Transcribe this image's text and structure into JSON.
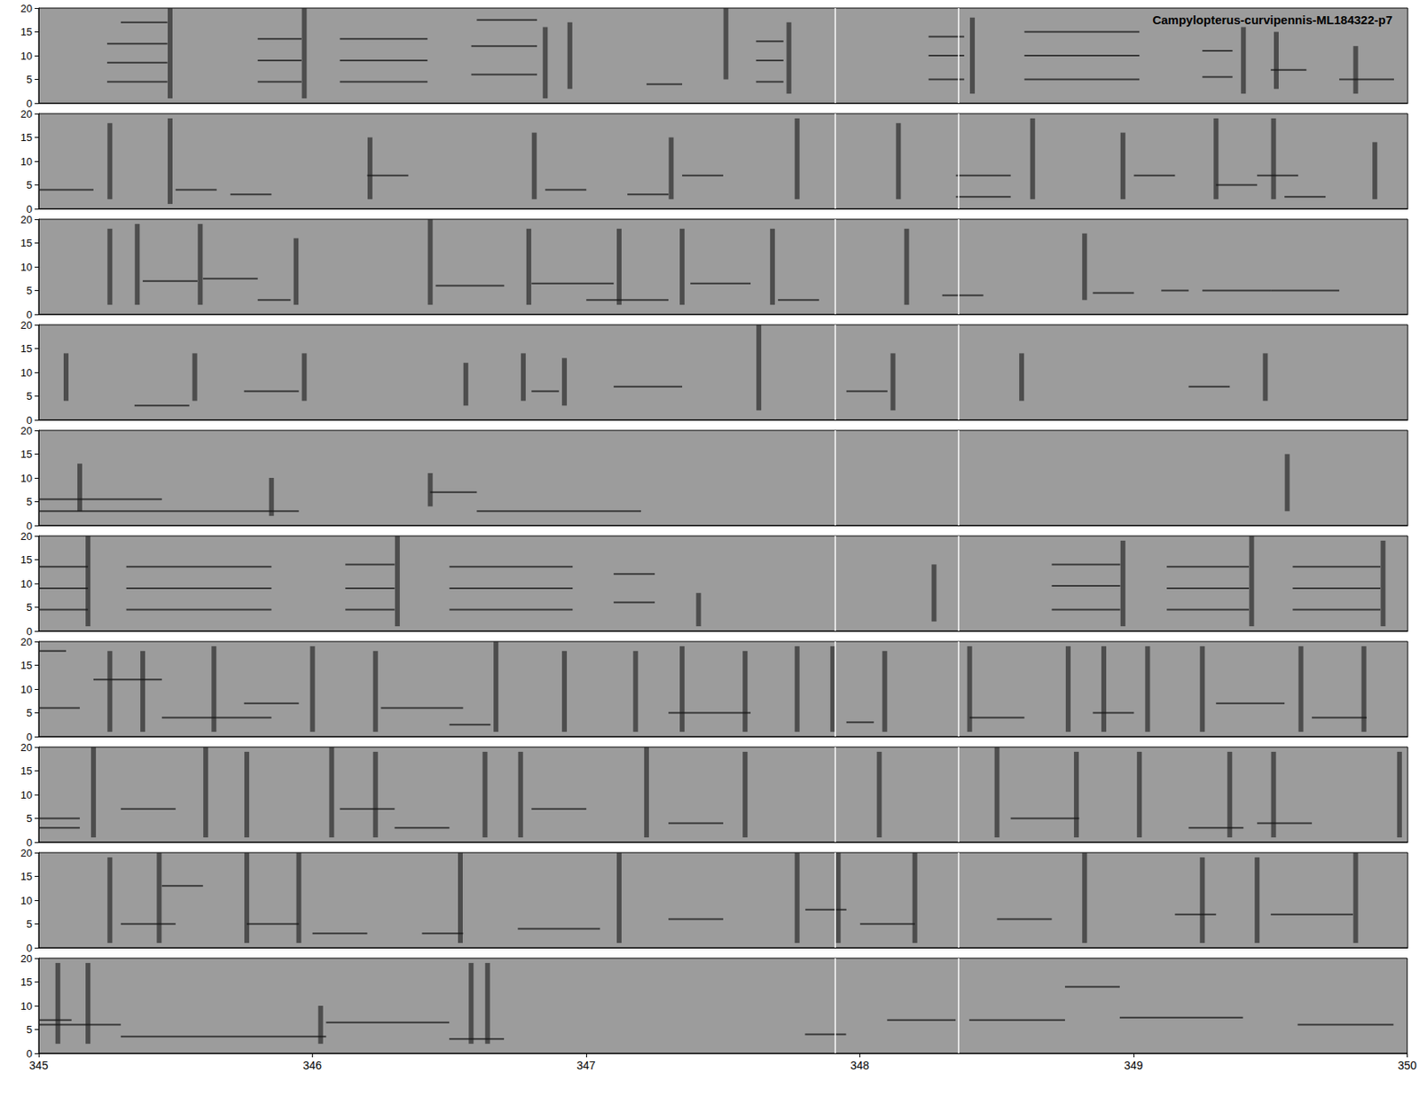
{
  "chart_data": {
    "type": "spectrogram",
    "title": "Campylopterus-curvipennis-ML184322-p7",
    "xlim": [
      345,
      350
    ],
    "xticks": [
      345,
      346,
      347,
      348,
      349,
      350
    ],
    "ylim": [
      0,
      20
    ],
    "yticks": [
      0,
      5,
      10,
      15,
      20
    ],
    "markers": [
      347.91,
      348.36
    ],
    "panels": [
      {
        "clicks": [
          [
            345.48,
            1,
            20
          ],
          [
            345.97,
            1,
            20
          ],
          [
            346.85,
            1,
            16
          ],
          [
            346.94,
            3,
            17
          ],
          [
            347.51,
            5,
            20
          ],
          [
            347.74,
            2,
            17
          ],
          [
            348.41,
            2,
            18
          ],
          [
            349.4,
            2,
            16
          ],
          [
            349.52,
            3,
            15
          ],
          [
            349.81,
            2,
            12
          ]
        ],
        "tones": [
          [
            345.25,
            345.47,
            4.5
          ],
          [
            345.25,
            345.47,
            8.5
          ],
          [
            345.25,
            345.47,
            12.5
          ],
          [
            345.3,
            345.47,
            17
          ],
          [
            345.8,
            345.96,
            4.5
          ],
          [
            345.8,
            345.96,
            9
          ],
          [
            345.8,
            345.96,
            13.5
          ],
          [
            346.1,
            346.42,
            4.5
          ],
          [
            346.1,
            346.42,
            9
          ],
          [
            346.1,
            346.42,
            13.5
          ],
          [
            346.58,
            346.82,
            6
          ],
          [
            346.58,
            346.82,
            12
          ],
          [
            346.6,
            346.82,
            17.5
          ],
          [
            347.22,
            347.35,
            4
          ],
          [
            347.62,
            347.72,
            4.5
          ],
          [
            347.62,
            347.72,
            9
          ],
          [
            347.62,
            347.72,
            13
          ],
          [
            348.25,
            348.38,
            5
          ],
          [
            348.25,
            348.38,
            10
          ],
          [
            348.25,
            348.38,
            14
          ],
          [
            348.6,
            349.02,
            5
          ],
          [
            348.6,
            349.02,
            10
          ],
          [
            348.6,
            349.02,
            15
          ],
          [
            349.25,
            349.36,
            5.5
          ],
          [
            349.25,
            349.36,
            11
          ],
          [
            349.5,
            349.63,
            7
          ],
          [
            349.75,
            349.95,
            5
          ]
        ]
      },
      {
        "clicks": [
          [
            345.26,
            2,
            18
          ],
          [
            345.48,
            1,
            19
          ],
          [
            346.21,
            2,
            15
          ],
          [
            346.81,
            2,
            16
          ],
          [
            347.31,
            2,
            15
          ],
          [
            347.77,
            2,
            19
          ],
          [
            348.14,
            2,
            18
          ],
          [
            348.63,
            2,
            19
          ],
          [
            348.96,
            2,
            16
          ],
          [
            349.3,
            2,
            19
          ],
          [
            349.51,
            2,
            19
          ],
          [
            349.88,
            2,
            14
          ]
        ],
        "tones": [
          [
            345.0,
            345.2,
            4
          ],
          [
            345.5,
            345.65,
            4
          ],
          [
            345.7,
            345.85,
            3
          ],
          [
            346.2,
            346.35,
            7
          ],
          [
            346.85,
            347.0,
            4
          ],
          [
            347.15,
            347.3,
            3
          ],
          [
            347.35,
            347.5,
            7
          ],
          [
            348.35,
            348.55,
            2.5
          ],
          [
            348.35,
            348.55,
            7
          ],
          [
            349.0,
            349.15,
            7
          ],
          [
            349.3,
            349.45,
            5
          ],
          [
            349.45,
            349.6,
            7
          ],
          [
            349.55,
            349.7,
            2.5
          ]
        ]
      },
      {
        "clicks": [
          [
            345.26,
            2,
            18
          ],
          [
            345.36,
            2,
            19
          ],
          [
            345.59,
            2,
            19
          ],
          [
            345.94,
            2,
            16
          ],
          [
            346.43,
            2,
            20
          ],
          [
            346.79,
            2,
            18
          ],
          [
            347.12,
            2,
            18
          ],
          [
            347.35,
            2,
            18
          ],
          [
            347.68,
            2,
            18
          ],
          [
            348.17,
            2,
            18
          ],
          [
            348.82,
            3,
            17
          ]
        ],
        "tones": [
          [
            345.38,
            345.58,
            7
          ],
          [
            345.6,
            345.8,
            7.5
          ],
          [
            345.8,
            345.92,
            3
          ],
          [
            346.45,
            346.7,
            6
          ],
          [
            346.8,
            347.1,
            6.5
          ],
          [
            347.0,
            347.3,
            3
          ],
          [
            347.38,
            347.6,
            6.5
          ],
          [
            347.7,
            347.85,
            3
          ],
          [
            348.3,
            348.45,
            4
          ],
          [
            348.85,
            349.0,
            4.5
          ],
          [
            349.1,
            349.2,
            5
          ],
          [
            349.25,
            349.5,
            5
          ],
          [
            349.5,
            349.75,
            5
          ]
        ]
      },
      {
        "clicks": [
          [
            345.1,
            4,
            14
          ],
          [
            345.57,
            4,
            14
          ],
          [
            345.97,
            4,
            14
          ],
          [
            346.56,
            3,
            12
          ],
          [
            346.77,
            4,
            14
          ],
          [
            346.92,
            3,
            13
          ],
          [
            347.63,
            2,
            20
          ],
          [
            348.12,
            2,
            14
          ],
          [
            348.59,
            4,
            14
          ],
          [
            349.48,
            4,
            14
          ]
        ],
        "tones": [
          [
            345.35,
            345.55,
            3
          ],
          [
            345.75,
            345.95,
            6
          ],
          [
            346.8,
            346.9,
            6
          ],
          [
            347.1,
            347.35,
            7
          ],
          [
            347.95,
            348.1,
            6
          ],
          [
            349.2,
            349.35,
            7
          ]
        ]
      },
      {
        "clicks": [
          [
            345.15,
            3,
            13
          ],
          [
            345.85,
            2,
            10
          ],
          [
            346.43,
            4,
            11
          ],
          [
            349.56,
            3,
            15
          ]
        ],
        "tones": [
          [
            345.0,
            345.45,
            5.5
          ],
          [
            345.0,
            345.95,
            3
          ],
          [
            346.43,
            346.6,
            7
          ],
          [
            346.6,
            347.2,
            3
          ]
        ]
      },
      {
        "clicks": [
          [
            345.18,
            1,
            20
          ],
          [
            346.31,
            1,
            20
          ],
          [
            347.41,
            1,
            8
          ],
          [
            348.27,
            2,
            14
          ],
          [
            348.96,
            1,
            19
          ],
          [
            349.43,
            1,
            20
          ],
          [
            349.91,
            1,
            19
          ]
        ],
        "tones": [
          [
            345.0,
            345.18,
            4.5
          ],
          [
            345.0,
            345.18,
            9
          ],
          [
            345.0,
            345.18,
            13.5
          ],
          [
            345.32,
            345.85,
            4.5
          ],
          [
            345.32,
            345.85,
            9
          ],
          [
            345.32,
            345.85,
            13.5
          ],
          [
            346.12,
            346.3,
            4.5
          ],
          [
            346.12,
            346.3,
            9
          ],
          [
            346.12,
            346.3,
            14
          ],
          [
            346.5,
            346.95,
            4.5
          ],
          [
            346.5,
            346.95,
            9
          ],
          [
            346.5,
            346.95,
            13.5
          ],
          [
            347.1,
            347.25,
            6
          ],
          [
            347.1,
            347.25,
            12
          ],
          [
            348.7,
            348.95,
            4.5
          ],
          [
            348.7,
            348.95,
            9.5
          ],
          [
            348.7,
            348.95,
            14
          ],
          [
            349.12,
            349.42,
            4.5
          ],
          [
            349.12,
            349.42,
            9
          ],
          [
            349.12,
            349.42,
            13.5
          ],
          [
            349.58,
            349.9,
            4.5
          ],
          [
            349.58,
            349.9,
            9
          ],
          [
            349.58,
            349.9,
            13.5
          ]
        ]
      },
      {
        "clicks": [
          [
            345.26,
            1,
            18
          ],
          [
            345.38,
            1,
            18
          ],
          [
            345.64,
            1,
            19
          ],
          [
            346.0,
            1,
            19
          ],
          [
            346.23,
            1,
            18
          ],
          [
            346.67,
            1,
            20
          ],
          [
            346.92,
            1,
            18
          ],
          [
            347.18,
            1,
            18
          ],
          [
            347.35,
            1,
            19
          ],
          [
            347.58,
            1,
            18
          ],
          [
            347.77,
            1,
            19
          ],
          [
            347.9,
            1,
            19
          ],
          [
            348.09,
            1,
            18
          ],
          [
            348.4,
            1,
            19
          ],
          [
            348.76,
            1,
            19
          ],
          [
            348.89,
            1,
            19
          ],
          [
            349.05,
            1,
            19
          ],
          [
            349.25,
            1,
            19
          ],
          [
            349.61,
            1,
            19
          ],
          [
            349.84,
            1,
            19
          ]
        ],
        "tones": [
          [
            345.0,
            345.15,
            6
          ],
          [
            345.0,
            345.1,
            18
          ],
          [
            345.2,
            345.45,
            12
          ],
          [
            345.45,
            345.65,
            4
          ],
          [
            345.65,
            345.85,
            4
          ],
          [
            345.75,
            345.95,
            7
          ],
          [
            346.25,
            346.55,
            6
          ],
          [
            346.5,
            346.65,
            2.5
          ],
          [
            347.3,
            347.6,
            5
          ],
          [
            347.95,
            348.05,
            3
          ],
          [
            348.4,
            348.6,
            4
          ],
          [
            348.85,
            349.0,
            5
          ],
          [
            349.3,
            349.55,
            7
          ],
          [
            349.65,
            349.85,
            4
          ]
        ]
      },
      {
        "clicks": [
          [
            345.2,
            1,
            20
          ],
          [
            345.61,
            1,
            20
          ],
          [
            345.76,
            1,
            19
          ],
          [
            346.07,
            1,
            20
          ],
          [
            346.23,
            1,
            19
          ],
          [
            346.63,
            1,
            19
          ],
          [
            346.76,
            1,
            19
          ],
          [
            347.22,
            1,
            20
          ],
          [
            347.58,
            1,
            19
          ],
          [
            348.07,
            1,
            19
          ],
          [
            348.5,
            1,
            20
          ],
          [
            348.79,
            1,
            19
          ],
          [
            349.02,
            1,
            19
          ],
          [
            349.35,
            1,
            19
          ],
          [
            349.51,
            1,
            19
          ],
          [
            349.97,
            1,
            19
          ]
        ],
        "tones": [
          [
            345.0,
            345.15,
            3
          ],
          [
            345.0,
            345.15,
            5
          ],
          [
            345.3,
            345.5,
            7
          ],
          [
            346.1,
            346.3,
            7
          ],
          [
            346.3,
            346.5,
            3
          ],
          [
            346.8,
            347.0,
            7
          ],
          [
            347.3,
            347.5,
            4
          ],
          [
            348.55,
            348.8,
            5
          ],
          [
            349.2,
            349.4,
            3
          ],
          [
            349.45,
            349.65,
            4
          ]
        ]
      },
      {
        "clicks": [
          [
            345.26,
            1,
            19
          ],
          [
            345.44,
            1,
            20
          ],
          [
            345.76,
            1,
            20
          ],
          [
            345.95,
            1,
            20
          ],
          [
            346.54,
            1,
            20
          ],
          [
            347.12,
            1,
            20
          ],
          [
            347.77,
            1,
            20
          ],
          [
            347.92,
            1,
            20
          ],
          [
            348.2,
            1,
            20
          ],
          [
            348.82,
            1,
            20
          ],
          [
            349.25,
            1,
            19
          ],
          [
            349.45,
            1,
            19
          ],
          [
            349.81,
            1,
            20
          ]
        ],
        "tones": [
          [
            345.3,
            345.5,
            5
          ],
          [
            345.45,
            345.6,
            13
          ],
          [
            345.76,
            345.95,
            5
          ],
          [
            346.0,
            346.2,
            3
          ],
          [
            346.4,
            346.55,
            3
          ],
          [
            346.75,
            347.05,
            4
          ],
          [
            347.3,
            347.5,
            6
          ],
          [
            347.8,
            347.95,
            8
          ],
          [
            348.0,
            348.2,
            5
          ],
          [
            348.5,
            348.7,
            6
          ],
          [
            349.15,
            349.3,
            7
          ],
          [
            349.5,
            349.8,
            7
          ]
        ]
      },
      {
        "clicks": [
          [
            345.07,
            2,
            19
          ],
          [
            345.18,
            2,
            19
          ],
          [
            346.03,
            2,
            10
          ],
          [
            346.58,
            2,
            19
          ],
          [
            346.64,
            2,
            19
          ]
        ],
        "tones": [
          [
            345.0,
            345.12,
            7
          ],
          [
            345.0,
            345.3,
            6
          ],
          [
            345.3,
            346.05,
            3.5
          ],
          [
            346.05,
            346.5,
            6.5
          ],
          [
            346.5,
            346.7,
            3
          ],
          [
            347.8,
            347.95,
            4
          ],
          [
            348.1,
            348.35,
            7
          ],
          [
            348.4,
            348.75,
            7
          ],
          [
            348.75,
            348.95,
            14
          ],
          [
            348.95,
            349.4,
            7.5
          ],
          [
            349.6,
            349.95,
            6
          ]
        ]
      }
    ]
  }
}
